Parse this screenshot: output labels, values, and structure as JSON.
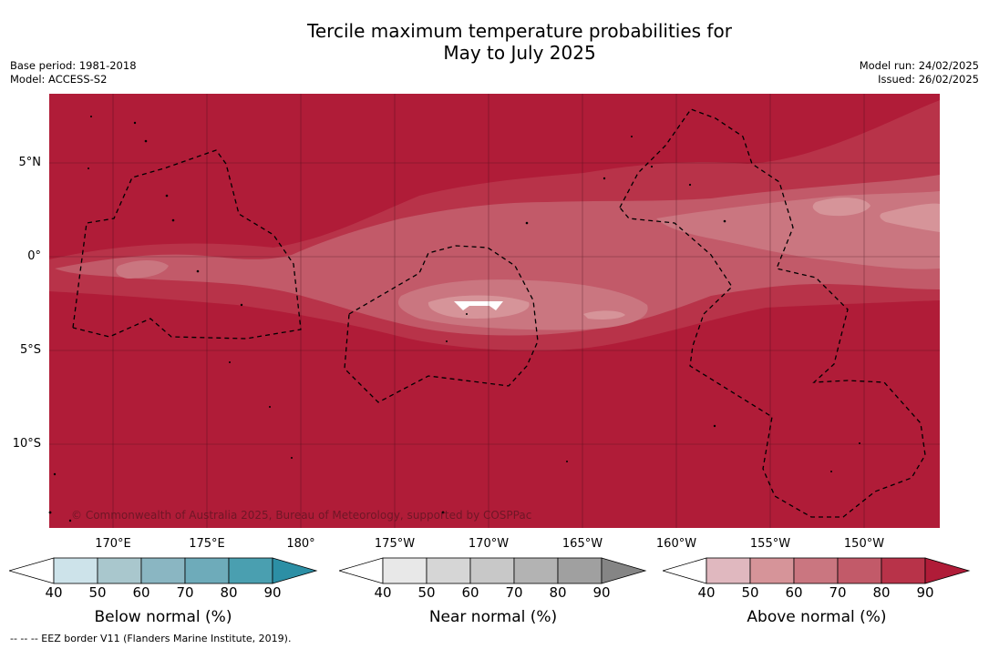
{
  "title_line1": "Tercile maximum temperature probabilities for",
  "title_line2": "May to July 2025",
  "base_period": "Base period: 1981-2018",
  "model": "Model: ACCESS-S2",
  "model_run": "Model run: 24/02/2025",
  "issued": "Issued: 26/02/2025",
  "lat_labels": [
    "5°N",
    "0°",
    "5°S",
    "10°S"
  ],
  "lon_labels": [
    "170°E",
    "175°E",
    "180°",
    "175°W",
    "170°W",
    "165°W",
    "160°W",
    "155°W",
    "150°W"
  ],
  "copyright": "© Commonwealth of Australia 2025, Bureau of Meteorology, supported by COSPPac",
  "footnote": "--  --  -- EEZ border V11 (Flanders Marine Institute, 2019).",
  "colorbars": {
    "below": {
      "label": "Below normal (%)",
      "ticks": [
        "40",
        "50",
        "60",
        "70",
        "80",
        "90"
      ],
      "colors": [
        "#cde3ea",
        "#a9c7cd",
        "#8ab6c2",
        "#6eabba",
        "#4a9fb0",
        "#2c8fa5"
      ]
    },
    "near": {
      "label": "Near normal (%)",
      "ticks": [
        "40",
        "50",
        "60",
        "70",
        "80",
        "90"
      ],
      "colors": [
        "#e8e8e8",
        "#d6d6d6",
        "#c8c8c8",
        "#b3b3b3",
        "#a0a0a0",
        "#858585"
      ]
    },
    "above": {
      "label": "Above normal (%)",
      "ticks": [
        "40",
        "50",
        "60",
        "70",
        "80",
        "90"
      ],
      "colors": [
        "#e0b8bf",
        "#d69499",
        "#ca7680",
        "#c25a69",
        "#b83349",
        "#b01c38"
      ]
    }
  }
}
